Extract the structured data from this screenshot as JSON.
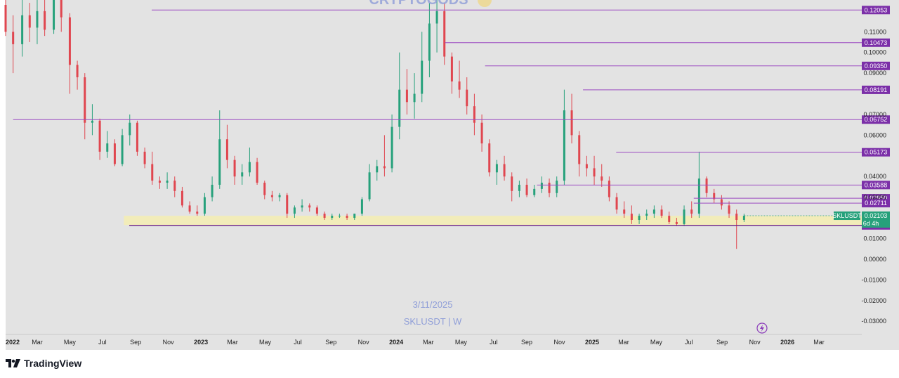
{
  "chart_data": {
    "type": "candlestick",
    "symbol": "SKLUSDT",
    "interval": "W",
    "watermark": {
      "date": "3/11/2025",
      "symbol_interval": "SKLUSDT | W",
      "top_text": "CRYPTOGODS"
    },
    "y_ticks": [
      "0.11000",
      "0.10000",
      "0.09000",
      "0.07000",
      "0.06000",
      "0.04000",
      "0.03000",
      "0.01000",
      "0.00000",
      "-0.01000",
      "-0.02000",
      "-0.03000"
    ],
    "y_tick_values": [
      0.11,
      0.1,
      0.09,
      0.07,
      0.06,
      0.04,
      0.03,
      0.01,
      0.0,
      -0.01,
      -0.02,
      -0.03
    ],
    "y_range": [
      -0.033,
      0.123
    ],
    "x_range": [
      "2022-01-01",
      "2026-05-20"
    ],
    "time_ticks": [
      {
        "label": "2022",
        "date": "2022-01-01",
        "bold": true
      },
      {
        "label": "Mar",
        "date": "2022-03-01",
        "bold": false
      },
      {
        "label": "May",
        "date": "2022-05-01",
        "bold": false
      },
      {
        "label": "Jul",
        "date": "2022-07-01",
        "bold": false
      },
      {
        "label": "Sep",
        "date": "2022-09-01",
        "bold": false
      },
      {
        "label": "Nov",
        "date": "2022-11-01",
        "bold": false
      },
      {
        "label": "2023",
        "date": "2023-01-01",
        "bold": true
      },
      {
        "label": "Mar",
        "date": "2023-03-01",
        "bold": false
      },
      {
        "label": "May",
        "date": "2023-05-01",
        "bold": false
      },
      {
        "label": "Jul",
        "date": "2023-07-01",
        "bold": false
      },
      {
        "label": "Sep",
        "date": "2023-09-01",
        "bold": false
      },
      {
        "label": "Nov",
        "date": "2023-11-01",
        "bold": false
      },
      {
        "label": "2024",
        "date": "2024-01-01",
        "bold": true
      },
      {
        "label": "Mar",
        "date": "2024-03-01",
        "bold": false
      },
      {
        "label": "May",
        "date": "2024-05-01",
        "bold": false
      },
      {
        "label": "Jul",
        "date": "2024-07-01",
        "bold": false
      },
      {
        "label": "Sep",
        "date": "2024-09-01",
        "bold": false
      },
      {
        "label": "Nov",
        "date": "2024-11-01",
        "bold": false
      },
      {
        "label": "2025",
        "date": "2025-01-01",
        "bold": true
      },
      {
        "label": "Mar",
        "date": "2025-03-01",
        "bold": false
      },
      {
        "label": "May",
        "date": "2025-05-01",
        "bold": false
      },
      {
        "label": "Jul",
        "date": "2025-07-01",
        "bold": false
      },
      {
        "label": "Sep",
        "date": "2025-09-01",
        "bold": false
      },
      {
        "label": "Nov",
        "date": "2025-11-01",
        "bold": false
      },
      {
        "label": "2026",
        "date": "2026-01-01",
        "bold": true
      },
      {
        "label": "Mar",
        "date": "2026-03-01",
        "bold": false
      }
    ],
    "levels": [
      {
        "label": "0.12053",
        "value": 0.12053,
        "start": "2022-10-01"
      },
      {
        "label": "0.10473",
        "value": 0.10473,
        "start": "2024-04-01"
      },
      {
        "label": "0.09350",
        "value": 0.0935,
        "start": "2024-06-15"
      },
      {
        "label": "0.08191",
        "value": 0.08191,
        "start": "2024-12-15"
      },
      {
        "label": "0.06752",
        "value": 0.06752,
        "start": "2022-01-15"
      },
      {
        "label": "0.05173",
        "value": 0.05173,
        "start": "2025-02-15"
      },
      {
        "label": "0.03588",
        "value": 0.03588,
        "start": "2024-09-20"
      },
      {
        "label": "0.02950",
        "value": 0.0295,
        "start": "2025-07-10"
      },
      {
        "label": "0.02711",
        "value": 0.02711,
        "start": "2025-07-10"
      },
      {
        "label": "0.01634",
        "value": 0.01634,
        "start": "2022-08-20"
      }
    ],
    "current_price": {
      "symbol": "SKLUSDT",
      "value": 0.02103,
      "label": "0.02103",
      "countdown": "6d 4h"
    },
    "support_zone": {
      "from": 0.0165,
      "to": 0.021,
      "start": "2022-08-10"
    },
    "candles": [
      [
        "2022-01-01",
        0.123,
        0.13,
        0.108,
        0.11
      ],
      [
        "2022-01-15",
        0.11,
        0.118,
        0.09,
        0.104
      ],
      [
        "2022-02-01",
        0.104,
        0.126,
        0.098,
        0.118
      ],
      [
        "2022-02-15",
        0.118,
        0.124,
        0.105,
        0.112
      ],
      [
        "2022-03-01",
        0.112,
        0.128,
        0.104,
        0.12
      ],
      [
        "2022-03-15",
        0.12,
        0.126,
        0.108,
        0.111
      ],
      [
        "2022-04-01",
        0.111,
        0.132,
        0.109,
        0.128
      ],
      [
        "2022-04-15",
        0.128,
        0.131,
        0.11,
        0.117
      ],
      [
        "2022-05-01",
        0.117,
        0.119,
        0.08,
        0.094
      ],
      [
        "2022-05-15",
        0.094,
        0.096,
        0.082,
        0.088
      ],
      [
        "2022-05-29",
        0.088,
        0.09,
        0.058,
        0.066
      ],
      [
        "2022-06-12",
        0.066,
        0.075,
        0.06,
        0.067
      ],
      [
        "2022-06-26",
        0.067,
        0.068,
        0.048,
        0.052
      ],
      [
        "2022-07-10",
        0.052,
        0.062,
        0.049,
        0.056
      ],
      [
        "2022-07-24",
        0.056,
        0.058,
        0.045,
        0.046
      ],
      [
        "2022-08-07",
        0.046,
        0.063,
        0.045,
        0.06
      ],
      [
        "2022-08-21",
        0.06,
        0.07,
        0.055,
        0.066
      ],
      [
        "2022-09-04",
        0.066,
        0.067,
        0.05,
        0.052
      ],
      [
        "2022-09-18",
        0.052,
        0.054,
        0.044,
        0.046
      ],
      [
        "2022-10-02",
        0.046,
        0.052,
        0.036,
        0.038
      ],
      [
        "2022-10-16",
        0.038,
        0.04,
        0.034,
        0.037
      ],
      [
        "2022-10-30",
        0.037,
        0.042,
        0.034,
        0.038
      ],
      [
        "2022-11-13",
        0.038,
        0.04,
        0.03,
        0.033
      ],
      [
        "2022-11-27",
        0.033,
        0.035,
        0.025,
        0.026
      ],
      [
        "2022-12-11",
        0.026,
        0.028,
        0.022,
        0.023
      ],
      [
        "2022-12-25",
        0.023,
        0.026,
        0.021,
        0.022
      ],
      [
        "2023-01-08",
        0.022,
        0.032,
        0.021,
        0.03
      ],
      [
        "2023-01-22",
        0.03,
        0.04,
        0.028,
        0.036
      ],
      [
        "2023-02-05",
        0.036,
        0.072,
        0.034,
        0.058
      ],
      [
        "2023-02-19",
        0.058,
        0.065,
        0.044,
        0.048
      ],
      [
        "2023-03-05",
        0.048,
        0.05,
        0.036,
        0.04
      ],
      [
        "2023-03-19",
        0.04,
        0.046,
        0.036,
        0.042
      ],
      [
        "2023-04-02",
        0.042,
        0.054,
        0.04,
        0.047
      ],
      [
        "2023-04-16",
        0.047,
        0.049,
        0.036,
        0.037
      ],
      [
        "2023-04-30",
        0.037,
        0.038,
        0.029,
        0.031
      ],
      [
        "2023-05-14",
        0.031,
        0.033,
        0.028,
        0.03
      ],
      [
        "2023-05-28",
        0.03,
        0.032,
        0.028,
        0.031
      ],
      [
        "2023-06-11",
        0.031,
        0.032,
        0.02,
        0.022
      ],
      [
        "2023-06-25",
        0.022,
        0.026,
        0.02,
        0.025
      ],
      [
        "2023-07-09",
        0.025,
        0.029,
        0.023,
        0.026
      ],
      [
        "2023-07-23",
        0.026,
        0.027,
        0.023,
        0.025
      ],
      [
        "2023-08-06",
        0.025,
        0.026,
        0.021,
        0.022
      ],
      [
        "2023-08-20",
        0.022,
        0.023,
        0.019,
        0.02
      ],
      [
        "2023-09-03",
        0.02,
        0.022,
        0.019,
        0.021
      ],
      [
        "2023-09-17",
        0.021,
        0.022,
        0.02,
        0.021
      ],
      [
        "2023-10-01",
        0.021,
        0.022,
        0.019,
        0.02
      ],
      [
        "2023-10-15",
        0.02,
        0.022,
        0.019,
        0.022
      ],
      [
        "2023-10-29",
        0.022,
        0.03,
        0.021,
        0.029
      ],
      [
        "2023-11-12",
        0.029,
        0.046,
        0.028,
        0.042
      ],
      [
        "2023-11-26",
        0.042,
        0.048,
        0.038,
        0.045
      ],
      [
        "2023-12-10",
        0.045,
        0.06,
        0.04,
        0.044
      ],
      [
        "2023-12-24",
        0.044,
        0.07,
        0.042,
        0.064
      ],
      [
        "2024-01-07",
        0.064,
        0.1,
        0.058,
        0.082
      ],
      [
        "2024-01-21",
        0.082,
        0.092,
        0.07,
        0.076
      ],
      [
        "2024-02-04",
        0.076,
        0.09,
        0.068,
        0.08
      ],
      [
        "2024-02-18",
        0.08,
        0.11,
        0.076,
        0.096
      ],
      [
        "2024-03-03",
        0.096,
        0.124,
        0.088,
        0.114
      ],
      [
        "2024-03-17",
        0.114,
        0.126,
        0.1,
        0.12
      ],
      [
        "2024-03-31",
        0.12,
        0.124,
        0.094,
        0.098
      ],
      [
        "2024-04-14",
        0.098,
        0.1,
        0.08,
        0.086
      ],
      [
        "2024-04-28",
        0.086,
        0.096,
        0.078,
        0.082
      ],
      [
        "2024-05-12",
        0.082,
        0.088,
        0.07,
        0.074
      ],
      [
        "2024-05-26",
        0.074,
        0.08,
        0.06,
        0.066
      ],
      [
        "2024-06-09",
        0.066,
        0.07,
        0.052,
        0.056
      ],
      [
        "2024-06-23",
        0.056,
        0.058,
        0.04,
        0.042
      ],
      [
        "2024-07-07",
        0.042,
        0.048,
        0.036,
        0.046
      ],
      [
        "2024-07-21",
        0.046,
        0.05,
        0.038,
        0.04
      ],
      [
        "2024-08-04",
        0.04,
        0.042,
        0.028,
        0.033
      ],
      [
        "2024-08-18",
        0.033,
        0.038,
        0.03,
        0.036
      ],
      [
        "2024-09-01",
        0.036,
        0.039,
        0.03,
        0.031
      ],
      [
        "2024-09-15",
        0.031,
        0.036,
        0.03,
        0.034
      ],
      [
        "2024-09-29",
        0.034,
        0.04,
        0.032,
        0.037
      ],
      [
        "2024-10-13",
        0.037,
        0.039,
        0.03,
        0.032
      ],
      [
        "2024-10-27",
        0.032,
        0.04,
        0.03,
        0.038
      ],
      [
        "2024-11-10",
        0.038,
        0.082,
        0.036,
        0.072
      ],
      [
        "2024-11-24",
        0.072,
        0.08,
        0.056,
        0.06
      ],
      [
        "2024-12-08",
        0.06,
        0.062,
        0.04,
        0.046
      ],
      [
        "2024-12-22",
        0.046,
        0.05,
        0.04,
        0.044
      ],
      [
        "2025-01-05",
        0.044,
        0.05,
        0.036,
        0.04
      ],
      [
        "2025-01-19",
        0.04,
        0.046,
        0.035,
        0.038
      ],
      [
        "2025-02-02",
        0.038,
        0.04,
        0.028,
        0.03
      ],
      [
        "2025-02-16",
        0.03,
        0.032,
        0.022,
        0.024
      ],
      [
        "2025-03-02",
        0.024,
        0.028,
        0.02,
        0.022
      ],
      [
        "2025-03-16",
        0.022,
        0.026,
        0.017,
        0.019
      ],
      [
        "2025-03-30",
        0.019,
        0.022,
        0.017,
        0.021
      ],
      [
        "2025-04-13",
        0.021,
        0.024,
        0.019,
        0.022
      ],
      [
        "2025-04-27",
        0.022,
        0.026,
        0.02,
        0.024
      ],
      [
        "2025-05-11",
        0.024,
        0.026,
        0.02,
        0.021
      ],
      [
        "2025-05-25",
        0.021,
        0.023,
        0.017,
        0.018
      ],
      [
        "2025-06-08",
        0.018,
        0.02,
        0.016,
        0.017
      ],
      [
        "2025-06-22",
        0.017,
        0.026,
        0.016,
        0.024
      ],
      [
        "2025-07-06",
        0.024,
        0.028,
        0.02,
        0.022
      ],
      [
        "2025-07-20",
        0.022,
        0.052,
        0.02,
        0.039
      ],
      [
        "2025-08-03",
        0.039,
        0.04,
        0.03,
        0.032
      ],
      [
        "2025-08-17",
        0.032,
        0.034,
        0.027,
        0.029
      ],
      [
        "2025-08-31",
        0.029,
        0.031,
        0.024,
        0.026
      ],
      [
        "2025-09-14",
        0.026,
        0.028,
        0.02,
        0.022
      ],
      [
        "2025-09-28",
        0.022,
        0.024,
        0.005,
        0.019
      ],
      [
        "2025-10-12",
        0.019,
        0.022,
        0.018,
        0.021
      ]
    ]
  },
  "footer": {
    "brand": "TradingView"
  }
}
